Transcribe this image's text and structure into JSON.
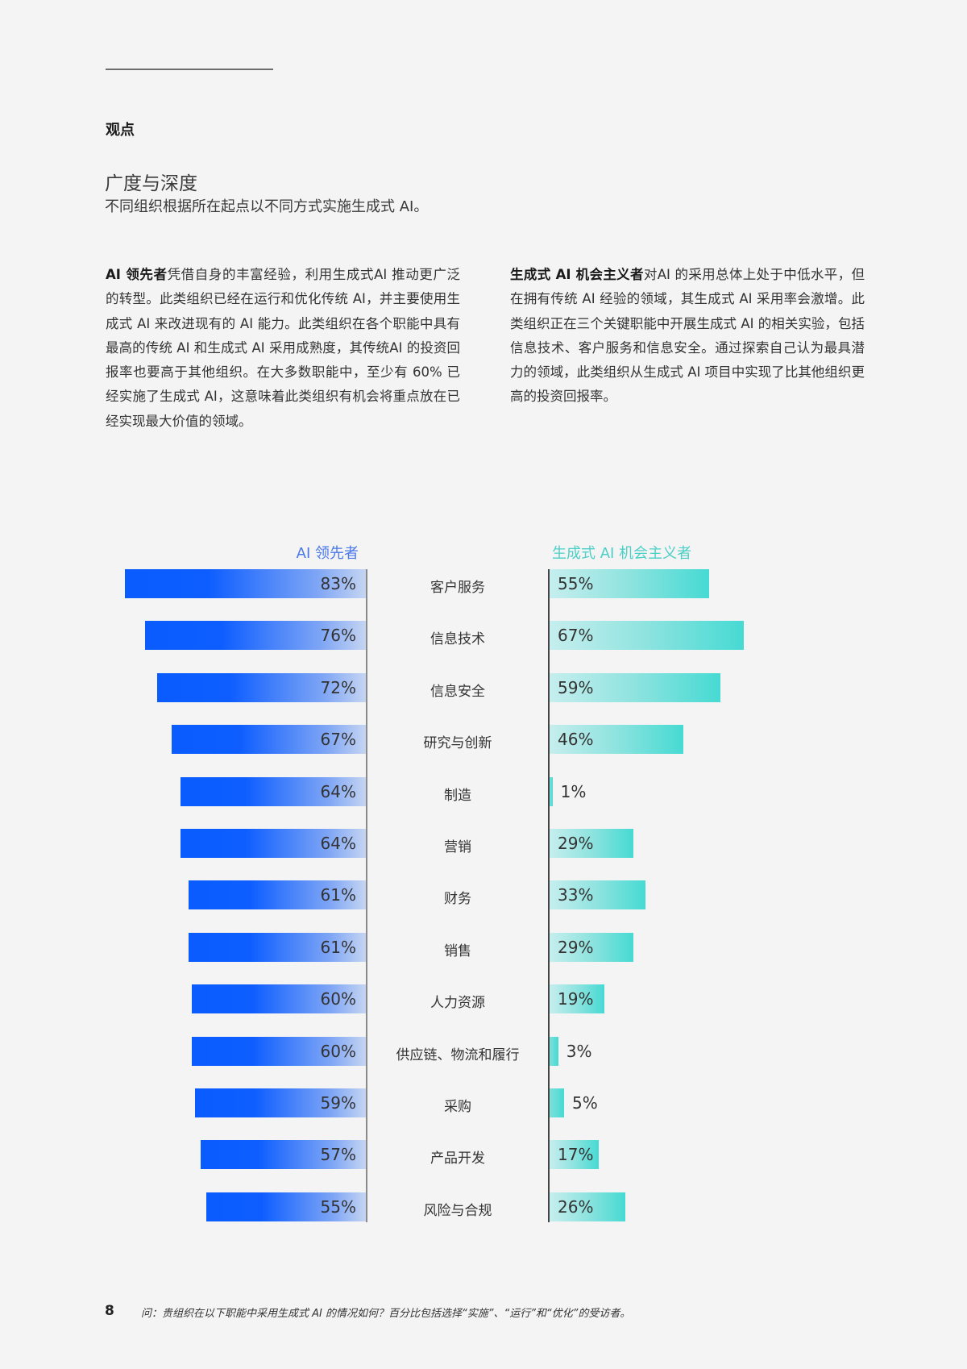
{
  "header": {
    "section_label": "观点",
    "title": "广度与深度",
    "subtitle": "不同组织根据所在起点以不同方式实施生成式 AI。"
  },
  "paragraphs": {
    "left": {
      "lead": "AI 领先者",
      "body": "凭借自身的丰富经验，利用生成式AI 推动更广泛的转型。此类组织已经在运行和优化传统 AI，并主要使用生成式 AI 来改进现有的 AI 能力。此类组织在各个职能中具有最高的传统 AI 和生成式 AI 采用成熟度，其传统AI 的投资回报率也要高于其他组织。在大多数职能中，至少有 60% 已经实施了生成式 AI，这意味着此类组织有机会将重点放在已经实现最大价值的领域。"
    },
    "right": {
      "lead": "生成式 AI 机会主义者",
      "body": "对AI 的采用总体上处于中低水平，但在拥有传统 AI 经验的领域，其生成式 AI 采用率会激增。此类组织正在三个关键职能中开展生成式 AI 的相关实验，包括信息技术、客户服务和信息安全。通过探索自己认为最具潜力的领域，此类组织从生成式 AI 项目中实现了比其他组织更高的投资回报率。"
    }
  },
  "chart_data": {
    "type": "bar",
    "orientation": "horizontal-butterfly",
    "title": "",
    "categories": [
      "客户服务",
      "信息技术",
      "信息安全",
      "研究与创新",
      "制造",
      "营销",
      "财务",
      "销售",
      "人力资源",
      "供应链、物流和履行",
      "采购",
      "产品开发",
      "风险与合规"
    ],
    "series": [
      {
        "name": "AI 领先者",
        "color": "#0a5cff",
        "values": [
          83,
          76,
          72,
          67,
          64,
          64,
          61,
          61,
          60,
          60,
          59,
          57,
          55
        ]
      },
      {
        "name": "生成式 AI 机会主义者",
        "color": "#46dad3",
        "values": [
          55,
          67,
          59,
          46,
          1,
          29,
          33,
          29,
          19,
          3,
          5,
          17,
          26
        ]
      }
    ],
    "xlabel": "",
    "ylabel": "",
    "unit": "%",
    "legend_position": "top",
    "grid": false
  },
  "chart_labels": {
    "left_legend": "AI 领先者",
    "right_legend": "生成式 AI 机会主义者",
    "rows": [
      {
        "cat": "客户服务",
        "left": "83%",
        "right": "55%"
      },
      {
        "cat": "信息技术",
        "left": "76%",
        "right": "67%"
      },
      {
        "cat": "信息安全",
        "left": "72%",
        "right": "59%"
      },
      {
        "cat": "研究与创新",
        "left": "67%",
        "right": "46%"
      },
      {
        "cat": "制造",
        "left": "64%",
        "right": "1%"
      },
      {
        "cat": "营销",
        "left": "64%",
        "right": "29%"
      },
      {
        "cat": "财务",
        "left": "61%",
        "right": "33%"
      },
      {
        "cat": "销售",
        "left": "61%",
        "right": "29%"
      },
      {
        "cat": "人力资源",
        "left": "60%",
        "right": "19%"
      },
      {
        "cat": "供应链、物流和履行",
        "left": "60%",
        "right": "3%"
      },
      {
        "cat": "采购",
        "left": "59%",
        "right": "5%"
      },
      {
        "cat": "产品开发",
        "left": "57%",
        "right": "17%"
      },
      {
        "cat": "风险与合规",
        "left": "55%",
        "right": "26%"
      }
    ]
  },
  "footer": {
    "page_number": "8",
    "note": "问：贵组织在以下职能中采用生成式 AI 的情况如何？百分比包括选择“实施”、“运行”和“优化”的受访者。"
  }
}
